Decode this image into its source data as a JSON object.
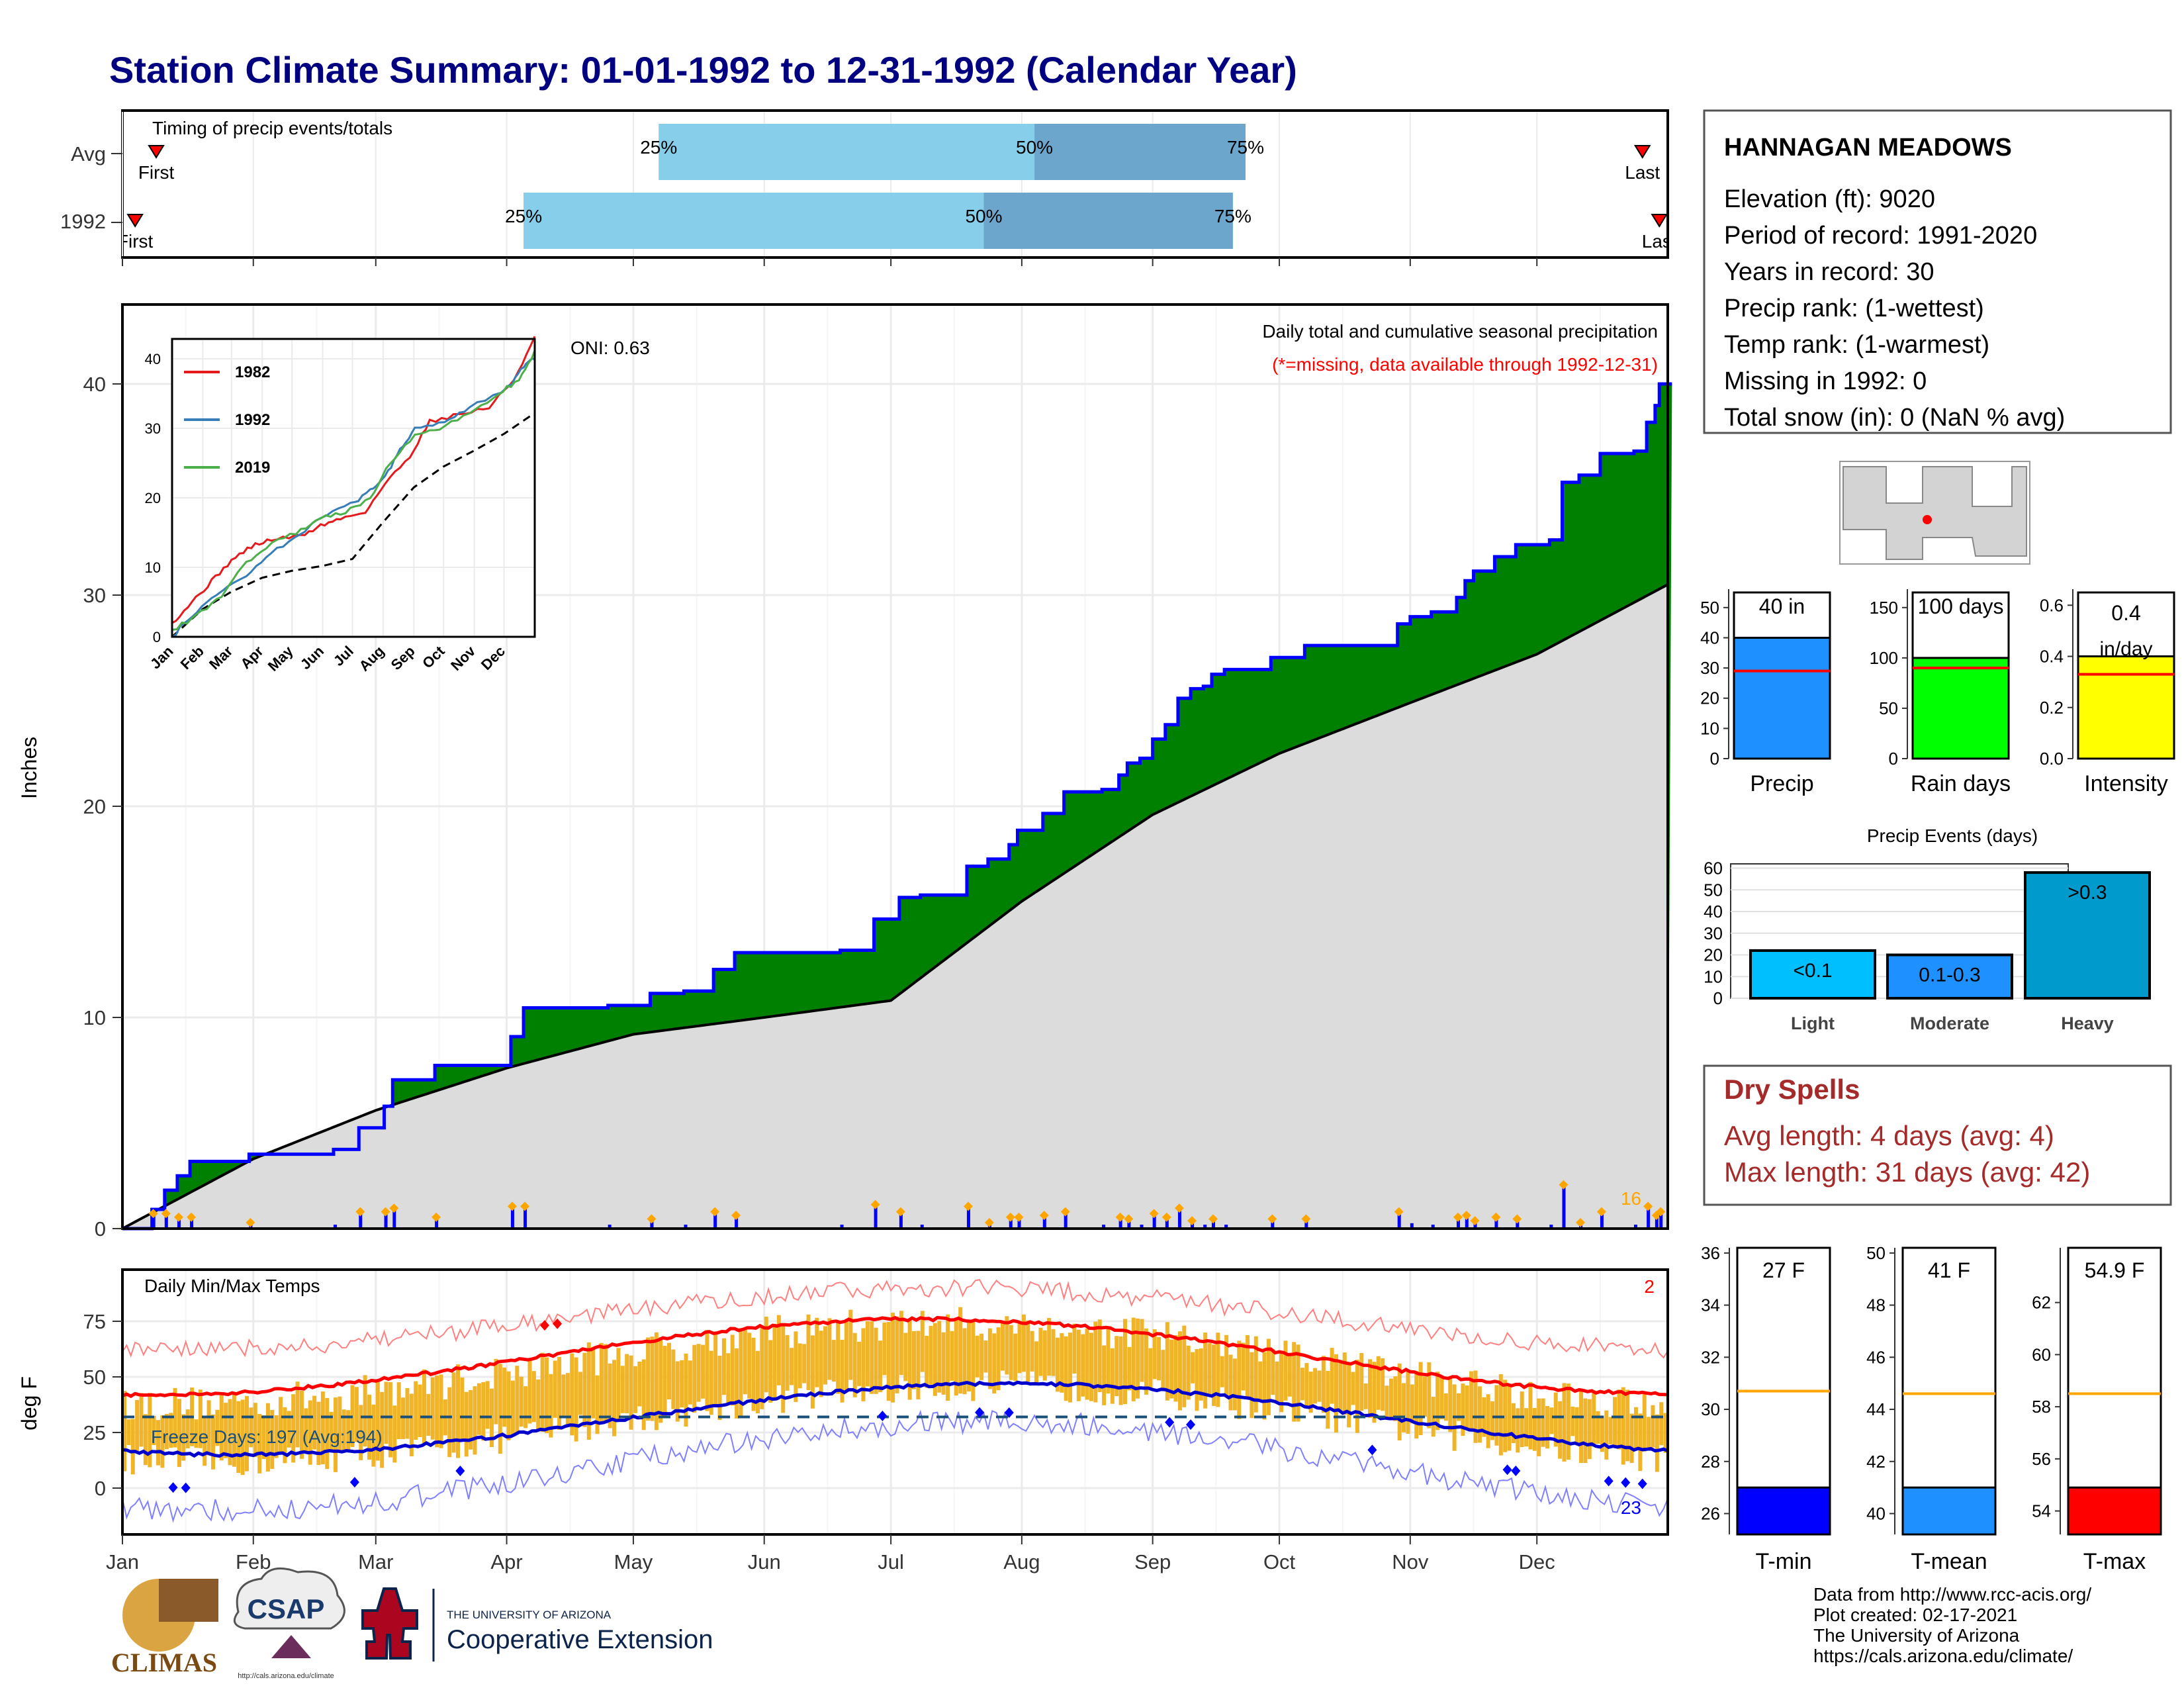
{
  "title": "Station Climate Summary: 01-01-1992 to 12-31-1992 (Calendar Year)",
  "timing_panel": {
    "label": "Timing of precip events/totals",
    "rows": [
      {
        "name": "Avg",
        "first_label": "First",
        "last_label": "Last",
        "p25_label": "25%",
        "p50_label": "50%",
        "p75_label": "75%",
        "first_doy": 8,
        "p25_doy": 127,
        "p50_doy": 216,
        "p75_doy": 266,
        "last_doy": 360
      },
      {
        "name": "1992",
        "first_label": "First",
        "last_label": "Last",
        "p25_label": "25%",
        "p50_label": "50%",
        "p75_label": "75%",
        "first_doy": 3,
        "p25_doy": 95,
        "p50_doy": 204,
        "p75_doy": 263,
        "last_doy": 364
      }
    ],
    "colors": {
      "light": "#87ceeb",
      "dark": "#6ca6cd",
      "marker": "#ff0000"
    }
  },
  "main_panel": {
    "ylabel": "Inches",
    "subtitle": "Daily total and cumulative seasonal precipitation",
    "missing_note": "(*=missing, data available through 1992-12-31)",
    "oni_label": "ONI: 0.63",
    "heavy_count_label": "16",
    "y_ticks": [
      "0",
      "10",
      "20",
      "30",
      "40"
    ],
    "x_months": [
      "Jan",
      "Feb",
      "Mar",
      "Apr",
      "May",
      "Jun",
      "Jul",
      "Aug",
      "Sep",
      "Oct",
      "Nov",
      "Dec"
    ],
    "colors": {
      "above": "#008000",
      "normal": "#dcdcdc",
      "line": "#0000ff",
      "daily": "#0000ff",
      "heavy": "#ffa500"
    }
  },
  "inset": {
    "y_ticks": [
      "0",
      "10",
      "20",
      "30",
      "40"
    ],
    "x_months": [
      "Jan",
      "Feb",
      "Mar",
      "Apr",
      "May",
      "Jun",
      "Jul",
      "Aug",
      "Sep",
      "Oct",
      "Nov",
      "Dec"
    ],
    "legend": [
      {
        "label": "1982",
        "color": "#e41a1c"
      },
      {
        "label": "1992",
        "color": "#377eb8"
      },
      {
        "label": "2019",
        "color": "#4daf4a"
      }
    ]
  },
  "temp_panel": {
    "label": "Daily Min/Max Temps",
    "ylabel": "deg F",
    "freeze_label": "Freeze Days: 197 (Avg:194)",
    "record_high_count": "2",
    "record_low_count": "23",
    "y_ticks": [
      "0",
      "25",
      "50",
      "75"
    ],
    "x_months": [
      "Jan",
      "Feb",
      "Mar",
      "Apr",
      "May",
      "Jun",
      "Jul",
      "Aug",
      "Sep",
      "Oct",
      "Nov",
      "Dec"
    ]
  },
  "station": {
    "name": "HANNAGAN MEADOWS",
    "lines": [
      "Elevation (ft): 9020",
      "Period of record: 1991-2020",
      "Years in record: 30",
      "Precip rank:  (1-wettest)",
      "Temp rank:  (1-warmest)",
      "Missing in 1992: 0",
      "Total snow (in): 0 (NaN % avg)"
    ]
  },
  "precip_summary": [
    {
      "name": "Precip",
      "label": "40 in",
      "value": 40,
      "avg": 29,
      "color": "#1e90ff",
      "ymax": 55,
      "ticks": [
        "0",
        "10",
        "20",
        "30",
        "40",
        "50"
      ]
    },
    {
      "name": "Rain days",
      "label": "100 days",
      "value": 100,
      "avg": 90,
      "color": "#00ff00",
      "ymax": 165,
      "ticks": [
        "0",
        "50",
        "100",
        "150"
      ]
    },
    {
      "name": "Intensity",
      "label": "0.4 in/day",
      "value": 0.4,
      "avg": 0.33,
      "color": "#ffff00",
      "ymax": 0.65,
      "ticks": [
        "0.0",
        "0.2",
        "0.4",
        "0.6"
      ]
    }
  ],
  "precip_events": {
    "title": "Precip Events (days)",
    "ticks": [
      "0",
      "10",
      "20",
      "30",
      "40",
      "50",
      "60"
    ],
    "bars": [
      {
        "name": "Light",
        "label": "<0.1",
        "value": 22,
        "color": "#00bfff"
      },
      {
        "name": "Moderate",
        "label": "0.1-0.3",
        "value": 20,
        "color": "#1e90ff"
      },
      {
        "name": "Heavy",
        "label": ">0.3",
        "value": 58,
        "color": "#009acd"
      }
    ]
  },
  "dry_spells": {
    "title": "Dry Spells",
    "avg_line": "Avg length: 4 days (avg: 4)",
    "max_line": "Max length: 31 days (avg: 42)"
  },
  "temp_summary": [
    {
      "name": "T-min",
      "label": "27 F",
      "value": 27,
      "avg": 30.7,
      "color": "#0000ff",
      "ymin": 25.2,
      "ymax": 36.2,
      "ticks": [
        "26",
        "28",
        "30",
        "32",
        "34",
        "36"
      ]
    },
    {
      "name": "T-mean",
      "label": "41 F",
      "value": 41,
      "avg": 44.6,
      "color": "#1e90ff",
      "ymin": 39.2,
      "ymax": 50.2,
      "ticks": [
        "40",
        "42",
        "44",
        "46",
        "48",
        "50"
      ]
    },
    {
      "name": "T-max",
      "label": "54.9 F",
      "value": 54.9,
      "avg": 58.5,
      "color": "#ff0000",
      "ymin": 53.1,
      "ymax": 64.1,
      "ticks": [
        "54",
        "56",
        "58",
        "60",
        "62"
      ]
    }
  ],
  "footer": {
    "credits": [
      "Data from http://www.rcc-acis.org/",
      "Plot created: 02-17-2021",
      "The University of Arizona",
      "https://cals.arizona.edu/climate/"
    ],
    "logos": {
      "climas": "CLIMAS",
      "csap": "CSAP",
      "csap_url": "http://cals.arizona.edu/climate",
      "ua_small": "THE UNIVERSITY OF ARIZONA",
      "ua_big": "Cooperative Extension"
    }
  }
}
